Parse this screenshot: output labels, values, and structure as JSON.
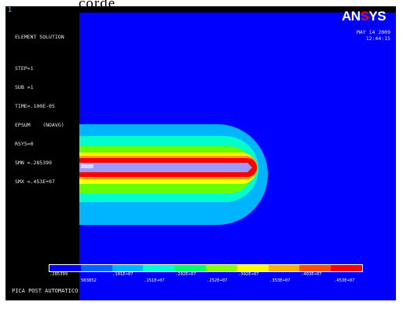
{
  "page_header": {
    "text": "corde"
  },
  "window": {
    "number": "1"
  },
  "info": {
    "lines": [
      "ELEMENT SOLUTION",
      "",
      "STEP=1",
      "SUB =1",
      "TIME=.100E-05",
      "EPSUM    (NOAVG)",
      "RSYS=0",
      "SMN =.285399",
      "SMX =.453E+07"
    ]
  },
  "logo": {
    "prefix": "AN",
    "accent": "S",
    "suffix": "YS"
  },
  "timestamp": {
    "date": "MAY 14 2009",
    "time": "12:44:15"
  },
  "legend": {
    "colors": [
      "#0000ff",
      "#0066ff",
      "#00b4ff",
      "#00ffcc",
      "#00ff66",
      "#88ff00",
      "#ffff00",
      "#ffb000",
      "#ff5000",
      "#ff0000"
    ],
    "upper_labels": [
      ".285399",
      ".101E+07",
      ".202E+07",
      ".302E+07",
      ".403E+07"
    ],
    "lower_labels": [
      "503852",
      ".151E+07",
      ".252E+07",
      ".353E+07",
      ".453E+07"
    ]
  },
  "caption": {
    "text": "PICA POST AUTOMATICO"
  },
  "colors": {
    "background": "#0000ff",
    "band_outer": "#00b4ff",
    "band_inner": "#00ffcc",
    "band_green": "#66ff00",
    "band_yellow": "#ffff00",
    "band_orange": "#ffa000",
    "band_red": "#ff0000",
    "crack": "#9a9aff"
  }
}
